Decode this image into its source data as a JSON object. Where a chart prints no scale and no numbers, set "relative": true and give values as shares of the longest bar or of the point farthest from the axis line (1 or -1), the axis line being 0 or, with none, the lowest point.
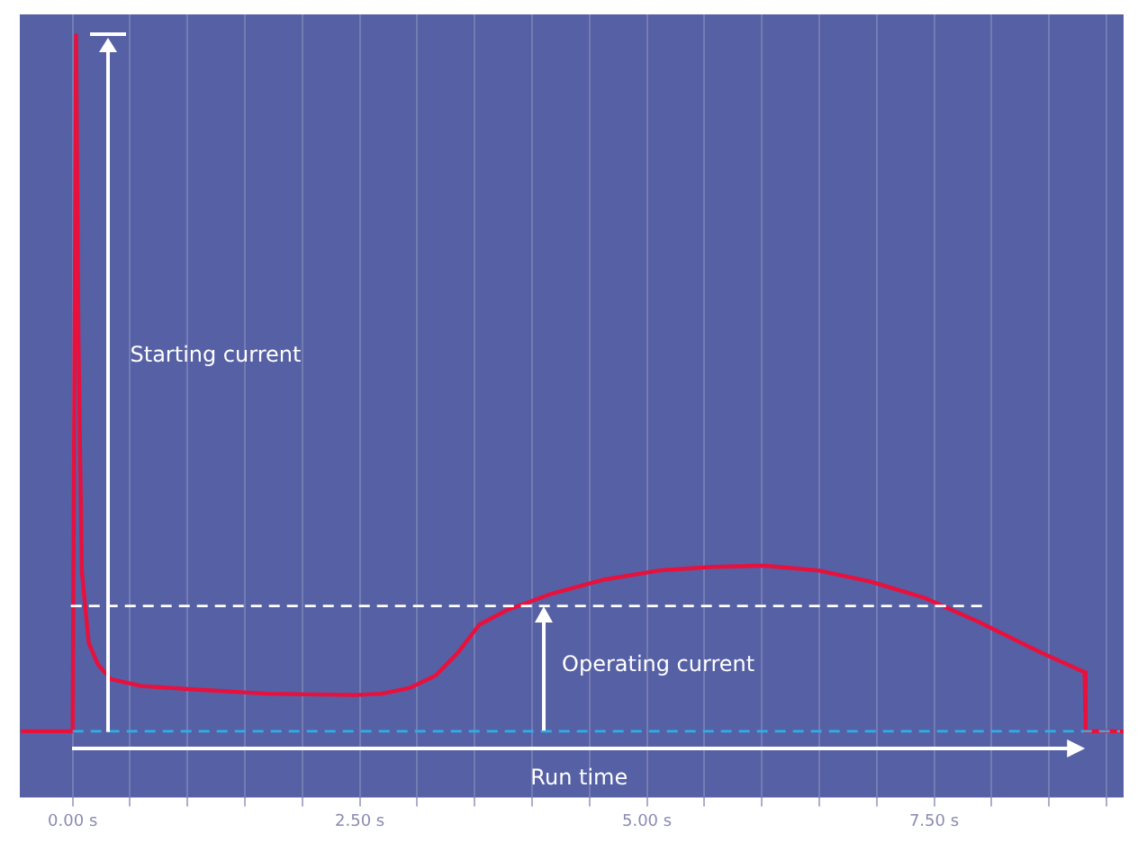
{
  "chart_data": {
    "type": "line",
    "relative": true,
    "color": "#e8103c",
    "x": [
      -0.45,
      0,
      0.03,
      0.05,
      0.08,
      0.14,
      0.22,
      0.33,
      0.6,
      1.07,
      1.69,
      2.46,
      2.69,
      2.93,
      3.16,
      3.36,
      3.54,
      3.78,
      4.16,
      4.63,
      5.11,
      5.56,
      6.02,
      6.49,
      6.95,
      7.41,
      7.88,
      8.42,
      8.81,
      8.82,
      9.15
    ],
    "values": [
      0,
      0,
      1,
      0.57,
      0.23,
      0.127,
      0.096,
      0.075,
      0.065,
      0.06,
      0.054,
      0.052,
      0.054,
      0.062,
      0.08,
      0.114,
      0.153,
      0.174,
      0.197,
      0.218,
      0.231,
      0.236,
      0.238,
      0.231,
      0.215,
      0.192,
      0.158,
      0.114,
      0.085,
      0,
      0
    ],
    "xlim": [
      -0.46,
      9.15
    ],
    "xticks": [
      {
        "value": 0,
        "label": "0.00 s"
      },
      {
        "value": 0.5,
        "label": null
      },
      {
        "value": 1,
        "label": null
      },
      {
        "value": 1.5,
        "label": null
      },
      {
        "value": 2,
        "label": null
      },
      {
        "value": 2.5,
        "label": "2.50 s"
      },
      {
        "value": 3,
        "label": null
      },
      {
        "value": 3.5,
        "label": null
      },
      {
        "value": 4,
        "label": null
      },
      {
        "value": 4.5,
        "label": null
      },
      {
        "value": 5,
        "label": "5.00 s"
      },
      {
        "value": 5.5,
        "label": null
      },
      {
        "value": 6,
        "label": null
      },
      {
        "value": 6.5,
        "label": null
      },
      {
        "value": 7,
        "label": null
      },
      {
        "value": 7.5,
        "label": "7.50 s"
      },
      {
        "value": 8,
        "label": null
      },
      {
        "value": 8.5,
        "label": null
      },
      {
        "value": 9,
        "label": null
      }
    ],
    "grid": "x",
    "legend": false,
    "tick_labels": "x",
    "marker": "none",
    "line_style": "solid",
    "ref_lines": [
      {
        "axis": "y",
        "value": 0.18,
        "color": "#ffffff",
        "line_style": "dashed"
      },
      {
        "axis": "y",
        "value": 0,
        "color": "#2ab0e8",
        "line_style": "dashed"
      }
    ],
    "annotations": [
      "Starting current",
      "Operating current",
      "Run time"
    ]
  }
}
